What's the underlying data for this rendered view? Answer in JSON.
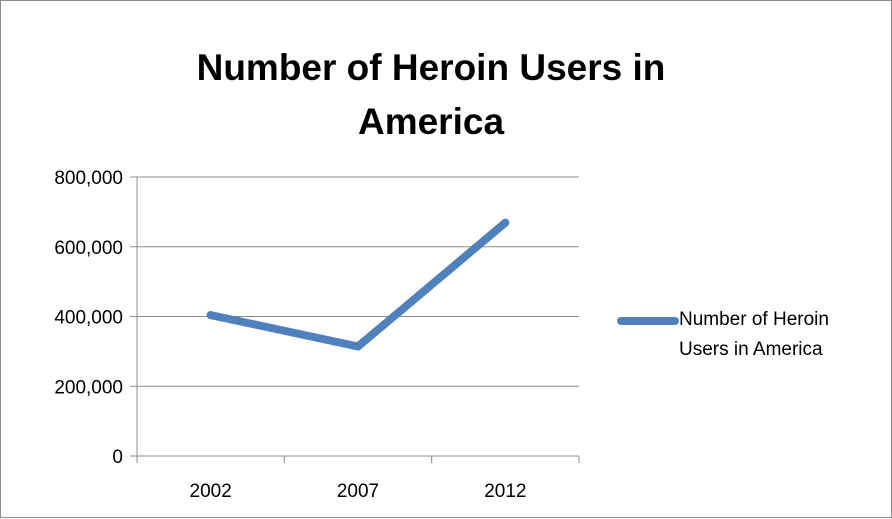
{
  "chart_data": {
    "type": "line",
    "title": "Number of Heroin Users in America",
    "categories": [
      "2002",
      "2007",
      "2012"
    ],
    "series": [
      {
        "name": "Number of Heroin Users in America",
        "values": [
          404000,
          314000,
          669000
        ],
        "color": "#4f81bd"
      }
    ],
    "ylim": [
      0,
      800000
    ],
    "yticks": [
      0,
      200000,
      400000,
      600000,
      800000
    ],
    "ytick_labels": [
      "0",
      "200,000",
      "400,000",
      "600,000",
      "800,000"
    ],
    "grid": true,
    "legend_position": "right"
  }
}
